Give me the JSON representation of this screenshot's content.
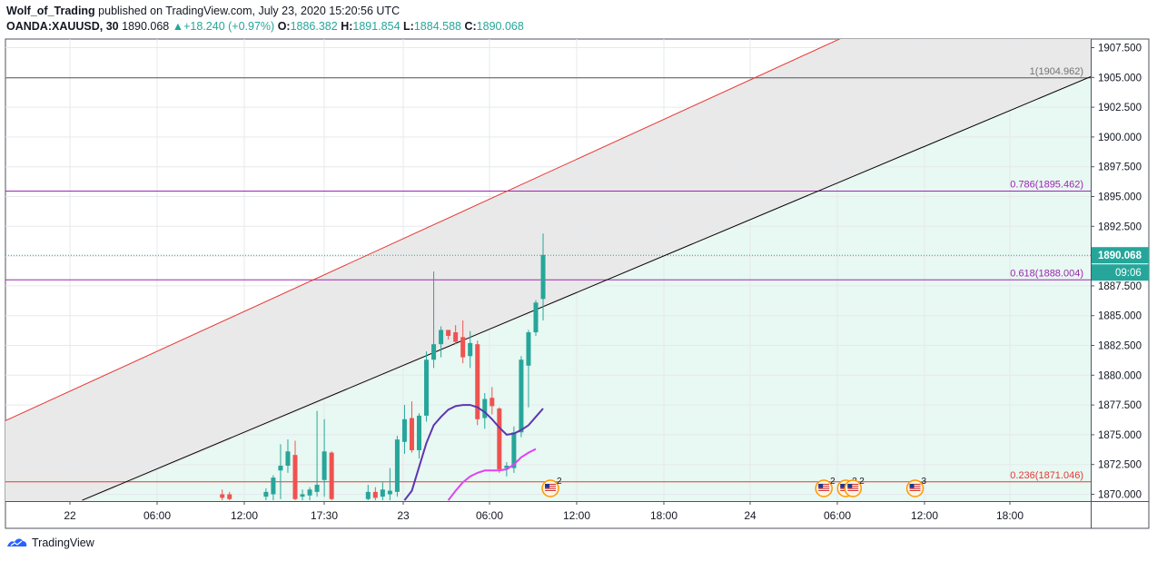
{
  "header": {
    "author": "Wolf_of_Trading",
    "published_text": "published on TradingView.com, July 23, 2020 15:20:56 UTC",
    "symbol": "OANDA:XAUUSD, 30",
    "last": "1890.068",
    "change": "+18.240 (+0.97%)",
    "o_label": "O:",
    "o": "1886.382",
    "h_label": "H:",
    "h": "1891.854",
    "l_label": "L:",
    "l": "1884.588",
    "c_label": "C:",
    "c": "1890.068"
  },
  "footer": {
    "brand": "TradingView"
  },
  "colors": {
    "bull": "#26a69a",
    "bear": "#ef5350",
    "grid": "#e6e9ec",
    "red_line": "#e53935",
    "fib_purple": "#9c27b0",
    "fib_red": "#e53935",
    "fib_one": "#555555",
    "ma_slow": "#5e35b1",
    "ma_fast": "#e040fb",
    "mint": "#e8f8f2",
    "gray_zone": "#e9e9e9",
    "price_tag": "#26a69a"
  },
  "chart_data": {
    "type": "candlestick",
    "ylim": [
      1869.5,
      1908.0
    ],
    "y_ticks": [
      "1870.000",
      "1872.500",
      "1875.000",
      "1877.500",
      "1880.000",
      "1882.500",
      "1885.000",
      "1887.500",
      "1890.000",
      "1892.500",
      "1895.000",
      "1897.500",
      "1900.000",
      "1902.500",
      "1905.000",
      "1907.500"
    ],
    "x_ticks": [
      "22",
      "06:00",
      "12:00",
      "17:30",
      "23",
      "06:00",
      "12:00",
      "18:00",
      "24",
      "06:00",
      "12:00",
      "18:00"
    ],
    "last_price": "1890.068",
    "countdown": "09:06",
    "fib_levels": [
      {
        "label": "1(1904.962)",
        "value": 1904.962,
        "kind": "one"
      },
      {
        "label": "0.786(1895.462)",
        "value": 1895.462,
        "kind": "purple"
      },
      {
        "label": "0.618(1888.004)",
        "value": 1888.004,
        "kind": "purple"
      },
      {
        "label": "0.236(1871.046)",
        "value": 1871.046,
        "kind": "red"
      }
    ],
    "trendlines": [
      {
        "name": "upper",
        "from": [
          -1.5,
          1875.9
        ],
        "to": [
          111.5,
          1907.4
        ]
      },
      {
        "name": "lower",
        "from": [
          10.8,
          1869.5
        ],
        "to": [
          111.5,
          1895.4
        ]
      }
    ],
    "candles": [
      {
        "i": 30,
        "o": 1870.0,
        "h": 1870.4,
        "l": 1869.5,
        "c": 1869.7
      },
      {
        "i": 31,
        "o": 1870.0,
        "h": 1870.2,
        "l": 1869.5,
        "c": 1869.6
      },
      {
        "i": 36,
        "o": 1869.8,
        "h": 1870.5,
        "l": 1869.5,
        "c": 1870.2
      },
      {
        "i": 37,
        "o": 1870.0,
        "h": 1871.6,
        "l": 1869.5,
        "c": 1871.4
      },
      {
        "i": 38,
        "o": 1872.0,
        "h": 1874.2,
        "l": 1869.6,
        "c": 1872.4
      },
      {
        "i": 39,
        "o": 1872.4,
        "h": 1874.6,
        "l": 1871.8,
        "c": 1873.6
      },
      {
        "i": 40,
        "o": 1873.3,
        "h": 1874.5,
        "l": 1869.5,
        "c": 1869.6
      },
      {
        "i": 41,
        "o": 1869.8,
        "h": 1870.4,
        "l": 1869.5,
        "c": 1870.0
      },
      {
        "i": 42,
        "o": 1869.9,
        "h": 1870.6,
        "l": 1869.5,
        "c": 1870.4
      },
      {
        "i": 43,
        "o": 1870.2,
        "h": 1877.0,
        "l": 1869.8,
        "c": 1870.8
      },
      {
        "i": 44,
        "o": 1871.2,
        "h": 1876.3,
        "l": 1869.8,
        "c": 1873.6
      },
      {
        "i": 45,
        "o": 1873.5,
        "h": 1873.6,
        "l": 1869.5,
        "c": 1869.6
      },
      {
        "i": 50,
        "o": 1869.6,
        "h": 1870.8,
        "l": 1869.5,
        "c": 1870.2
      },
      {
        "i": 51,
        "o": 1870.2,
        "h": 1870.6,
        "l": 1869.5,
        "c": 1869.7
      },
      {
        "i": 52,
        "o": 1869.8,
        "h": 1871.0,
        "l": 1869.5,
        "c": 1870.4
      },
      {
        "i": 53,
        "o": 1870.0,
        "h": 1872.2,
        "l": 1869.5,
        "c": 1870.3
      },
      {
        "i": 54,
        "o": 1870.2,
        "h": 1874.9,
        "l": 1869.8,
        "c": 1874.6
      },
      {
        "i": 55,
        "o": 1874.4,
        "h": 1877.5,
        "l": 1873.4,
        "c": 1876.3
      },
      {
        "i": 56,
        "o": 1876.4,
        "h": 1877.8,
        "l": 1873.5,
        "c": 1873.7
      },
      {
        "i": 57,
        "o": 1873.7,
        "h": 1876.8,
        "l": 1873.0,
        "c": 1876.6
      },
      {
        "i": 58,
        "o": 1876.6,
        "h": 1882.0,
        "l": 1876.1,
        "c": 1881.3
      },
      {
        "i": 59,
        "o": 1881.3,
        "h": 1888.7,
        "l": 1880.6,
        "c": 1882.6
      },
      {
        "i": 60,
        "o": 1882.6,
        "h": 1884.1,
        "l": 1881.5,
        "c": 1883.8
      },
      {
        "i": 61,
        "o": 1883.8,
        "h": 1883.8,
        "l": 1883.0,
        "c": 1883.3
      },
      {
        "i": 62,
        "o": 1883.6,
        "h": 1884.2,
        "l": 1882.6,
        "c": 1882.8
      },
      {
        "i": 63,
        "o": 1883.2,
        "h": 1884.6,
        "l": 1881.0,
        "c": 1881.5
      },
      {
        "i": 64,
        "o": 1881.6,
        "h": 1883.7,
        "l": 1880.6,
        "c": 1882.7
      },
      {
        "i": 65,
        "o": 1882.6,
        "h": 1882.9,
        "l": 1875.8,
        "c": 1876.3
      },
      {
        "i": 66,
        "o": 1876.4,
        "h": 1878.5,
        "l": 1875.5,
        "c": 1878.0
      },
      {
        "i": 67,
        "o": 1878.1,
        "h": 1879.0,
        "l": 1876.7,
        "c": 1877.4
      },
      {
        "i": 68,
        "o": 1877.2,
        "h": 1877.3,
        "l": 1871.8,
        "c": 1872.1
      },
      {
        "i": 69,
        "o": 1872.2,
        "h": 1872.7,
        "l": 1871.5,
        "c": 1872.4
      },
      {
        "i": 70,
        "o": 1872.2,
        "h": 1875.7,
        "l": 1871.8,
        "c": 1875.2
      },
      {
        "i": 71,
        "o": 1875.2,
        "h": 1881.6,
        "l": 1874.8,
        "c": 1881.3
      },
      {
        "i": 72,
        "o": 1880.8,
        "h": 1883.8,
        "l": 1877.3,
        "c": 1883.6
      },
      {
        "i": 73,
        "o": 1883.6,
        "h": 1886.3,
        "l": 1883.3,
        "c": 1886.1
      },
      {
        "i": 74,
        "o": 1886.4,
        "h": 1891.9,
        "l": 1884.6,
        "c": 1890.1
      }
    ],
    "ma_slow": [
      [
        55,
        1869.5
      ],
      [
        56,
        1870.3
      ],
      [
        57,
        1872.3
      ],
      [
        58,
        1874.3
      ],
      [
        59,
        1875.8
      ],
      [
        60,
        1876.5
      ],
      [
        61,
        1877.1
      ],
      [
        62,
        1877.4
      ],
      [
        63,
        1877.5
      ],
      [
        64,
        1877.5
      ],
      [
        65,
        1877.3
      ],
      [
        66,
        1876.9
      ],
      [
        67,
        1876.3
      ],
      [
        68,
        1875.6
      ],
      [
        69,
        1875.0
      ],
      [
        70,
        1875.1
      ],
      [
        71,
        1875.4
      ],
      [
        72,
        1875.8
      ],
      [
        73,
        1876.5
      ],
      [
        74,
        1877.2
      ]
    ],
    "ma_fast": [
      [
        61,
        1869.5
      ],
      [
        62,
        1870.3
      ],
      [
        63,
        1871.0
      ],
      [
        64,
        1871.5
      ],
      [
        65,
        1871.8
      ],
      [
        66,
        1872.0
      ],
      [
        67,
        1872.0
      ],
      [
        68,
        1872.0
      ],
      [
        69,
        1872.1
      ],
      [
        70,
        1872.5
      ],
      [
        71,
        1873.1
      ],
      [
        72,
        1873.5
      ],
      [
        73,
        1873.8
      ]
    ],
    "event_markers": [
      {
        "i": 75.0,
        "count": "2"
      },
      {
        "i": 112.5,
        "count": "2"
      },
      {
        "i": 115.5,
        "count": "3"
      },
      {
        "i": 116.5,
        "count": "2"
      },
      {
        "i": 125.0,
        "count": "3"
      }
    ]
  }
}
